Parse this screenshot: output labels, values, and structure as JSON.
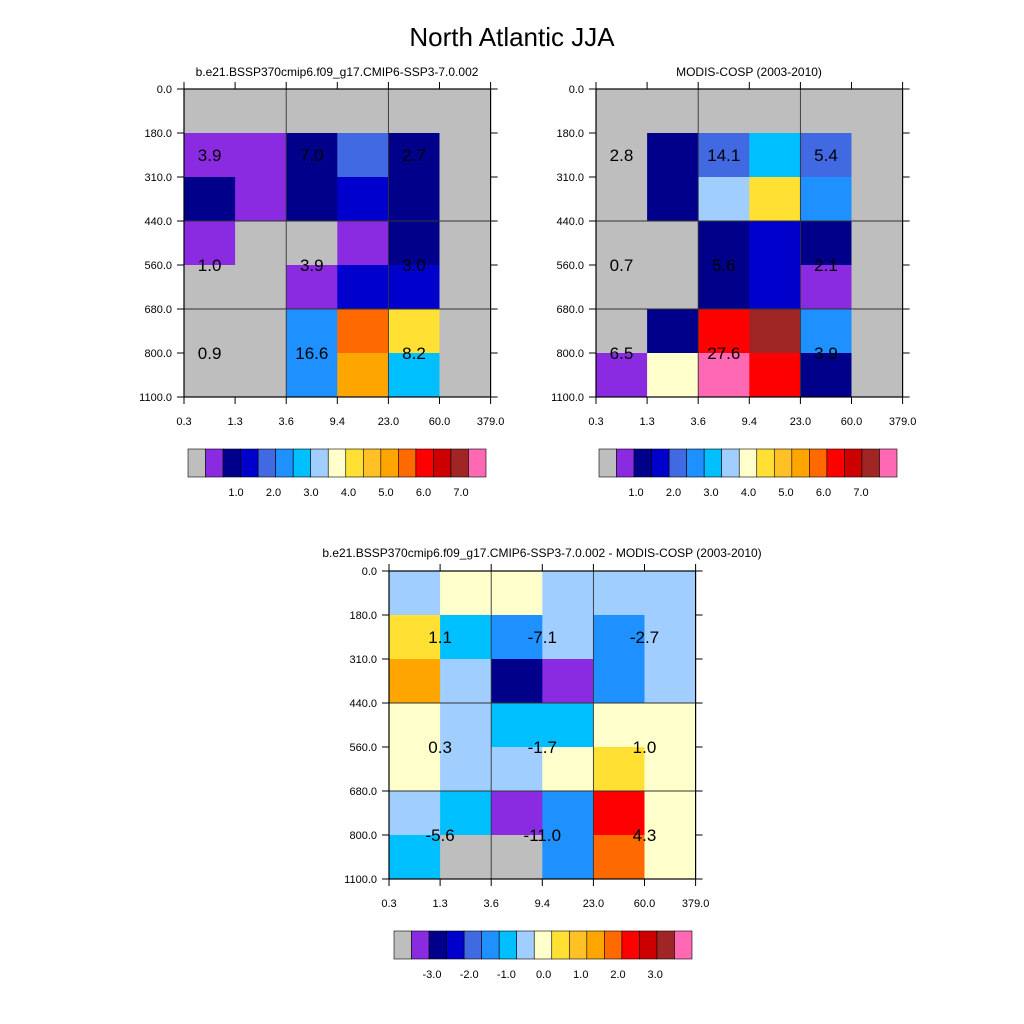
{
  "title": "North Atlantic JJA",
  "colors": {
    "ctp_tau_palette": [
      "#bebebe",
      "#8a2be2",
      "#00008b",
      "#0000cd",
      "#4169e1",
      "#1e90ff",
      "#00bfff",
      "#a0cfff",
      "#ffffcc",
      "#ffe033",
      "#ffc125",
      "#ffa500",
      "#ff6a00",
      "#ff0000",
      "#cd0000",
      "#a02525",
      "#ff69b4"
    ],
    "x_axis_fill": "#ffffff",
    "frame": "#000000"
  },
  "chart_data": [
    {
      "type": "heatmap",
      "title": "b.e21.BSSP370cmip6.f09_g17.CMIP6-SSP3-7.0.002",
      "x_tick_labels": [
        "0.3",
        "1.3",
        "3.6",
        "9.4",
        "23.0",
        "60.0",
        "379.0"
      ],
      "y_tick_labels": [
        "0.0",
        "180.0",
        "310.0",
        "440.0",
        "560.0",
        "680.0",
        "800.0",
        "1100.0"
      ],
      "cell_color_index": [
        [
          0,
          0,
          0,
          0,
          0,
          0
        ],
        [
          1,
          1,
          2,
          4,
          2,
          0
        ],
        [
          2,
          1,
          2,
          3,
          2,
          0
        ],
        [
          1,
          0,
          0,
          1,
          2,
          0
        ],
        [
          0,
          0,
          1,
          3,
          3,
          0
        ],
        [
          0,
          0,
          5,
          12,
          9,
          0
        ],
        [
          0,
          0,
          5,
          11,
          6,
          0
        ]
      ],
      "annotations": [
        {
          "text": "3.9",
          "col": 0.5,
          "row": 1.5
        },
        {
          "text": "7.0",
          "col": 2.5,
          "row": 1.5
        },
        {
          "text": "2.7",
          "col": 4.5,
          "row": 1.5
        },
        {
          "text": "1.0",
          "col": 0.5,
          "row": 4
        },
        {
          "text": "3.9",
          "col": 2.5,
          "row": 4
        },
        {
          "text": "3.0",
          "col": 4.5,
          "row": 4
        },
        {
          "text": "0.9",
          "col": 0.5,
          "row": 6
        },
        {
          "text": "16.6",
          "col": 2.5,
          "row": 6
        },
        {
          "text": "8.2",
          "col": 4.5,
          "row": 6
        }
      ],
      "colorbar_labels": [
        "1.0",
        "2.0",
        "3.0",
        "4.0",
        "5.0",
        "6.0",
        "7.0"
      ]
    },
    {
      "type": "heatmap",
      "title": "MODIS-COSP (2003-2010)",
      "x_tick_labels": [
        "0.3",
        "1.3",
        "3.6",
        "9.4",
        "23.0",
        "60.0",
        "379.0"
      ],
      "y_tick_labels": [
        "0.0",
        "180.0",
        "310.0",
        "440.0",
        "560.0",
        "680.0",
        "800.0",
        "1100.0"
      ],
      "cell_color_index": [
        [
          0,
          0,
          0,
          0,
          0,
          0
        ],
        [
          0,
          2,
          4,
          6,
          4,
          0
        ],
        [
          0,
          2,
          7,
          9,
          5,
          0
        ],
        [
          0,
          0,
          2,
          3,
          2,
          0
        ],
        [
          0,
          0,
          2,
          3,
          1,
          0
        ],
        [
          0,
          2,
          13,
          15,
          5,
          0
        ],
        [
          1,
          8,
          16,
          13,
          2,
          0
        ]
      ],
      "annotations": [
        {
          "text": "2.8",
          "col": 0.5,
          "row": 1.5
        },
        {
          "text": "14.1",
          "col": 2.5,
          "row": 1.5
        },
        {
          "text": "5.4",
          "col": 4.5,
          "row": 1.5
        },
        {
          "text": "0.7",
          "col": 0.5,
          "row": 4
        },
        {
          "text": "5.6",
          "col": 2.5,
          "row": 4
        },
        {
          "text": "2.1",
          "col": 4.5,
          "row": 4
        },
        {
          "text": "6.5",
          "col": 0.5,
          "row": 6
        },
        {
          "text": "27.6",
          "col": 2.5,
          "row": 6
        },
        {
          "text": "3.9",
          "col": 4.5,
          "row": 6
        }
      ],
      "colorbar_labels": [
        "1.0",
        "2.0",
        "3.0",
        "4.0",
        "5.0",
        "6.0",
        "7.0"
      ]
    },
    {
      "type": "heatmap",
      "title": "b.e21.BSSP370cmip6.f09_g17.CMIP6-SSP3-7.0.002 - MODIS-COSP (2003-2010)",
      "x_tick_labels": [
        "0.3",
        "1.3",
        "3.6",
        "9.4",
        "23.0",
        "60.0",
        "379.0"
      ],
      "y_tick_labels": [
        "0.0",
        "180.0",
        "310.0",
        "440.0",
        "560.0",
        "680.0",
        "800.0",
        "1100.0"
      ],
      "cell_color_index": [
        [
          7,
          8,
          8,
          7,
          7,
          7
        ],
        [
          9,
          6,
          5,
          7,
          5,
          7
        ],
        [
          11,
          7,
          2,
          1,
          5,
          7
        ],
        [
          8,
          7,
          6,
          6,
          8,
          8
        ],
        [
          8,
          7,
          7,
          8,
          9,
          8
        ],
        [
          7,
          6,
          1,
          5,
          13,
          8
        ],
        [
          6,
          0,
          0,
          5,
          12,
          8
        ]
      ],
      "annotations": [
        {
          "text": "1.1",
          "col": 1,
          "row": 1.5
        },
        {
          "text": "-7.1",
          "col": 3,
          "row": 1.5
        },
        {
          "text": "-2.7",
          "col": 5,
          "row": 1.5
        },
        {
          "text": "0.3",
          "col": 1,
          "row": 4
        },
        {
          "text": "-1.7",
          "col": 3,
          "row": 4
        },
        {
          "text": "1.0",
          "col": 5,
          "row": 4
        },
        {
          "text": "-5.6",
          "col": 1,
          "row": 6
        },
        {
          "text": "-11.0",
          "col": 3,
          "row": 6
        },
        {
          "text": "4.3",
          "col": 5,
          "row": 6
        }
      ],
      "colorbar_labels": [
        "-3.0",
        "-2.0",
        "-1.0",
        "0.0",
        "1.0",
        "2.0",
        "3.0"
      ]
    }
  ]
}
